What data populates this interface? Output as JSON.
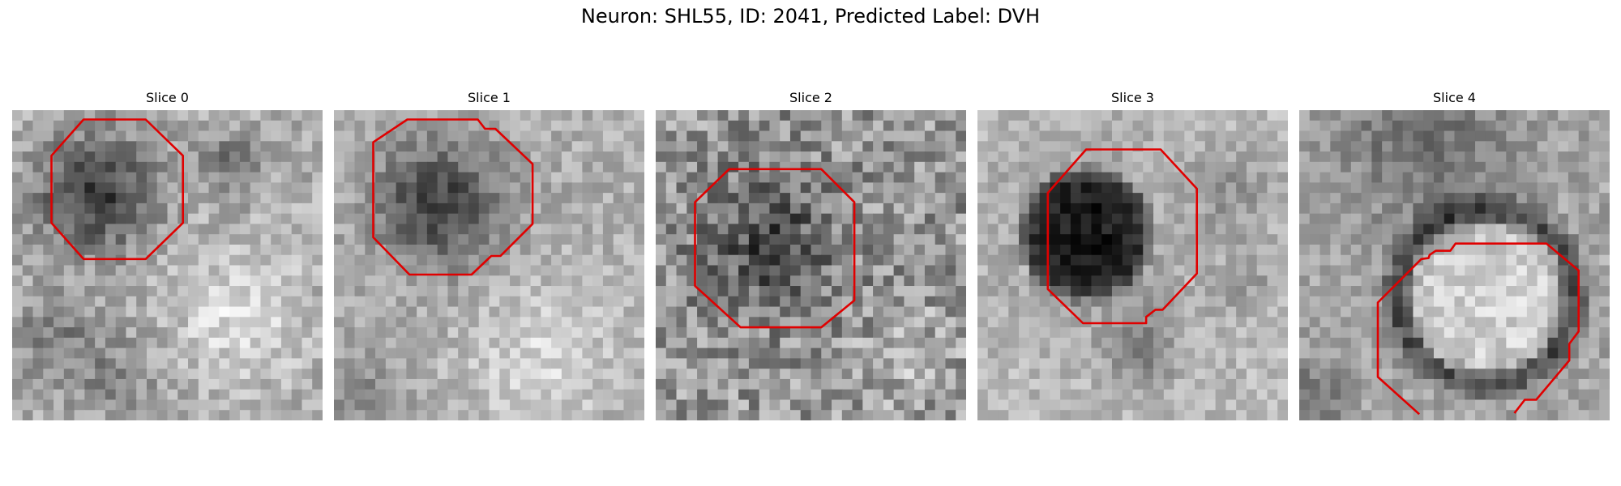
{
  "figure": {
    "title": "Neuron: SHL55, ID: 2041, Predicted Label: DVH"
  },
  "colors": {
    "contour": "#e00000",
    "background": "#ffffff"
  },
  "panels": [
    {
      "title": "Slice 0"
    },
    {
      "title": "Slice 1"
    },
    {
      "title": "Slice 2"
    },
    {
      "title": "Slice 3"
    },
    {
      "title": "Slice 4"
    }
  ]
}
